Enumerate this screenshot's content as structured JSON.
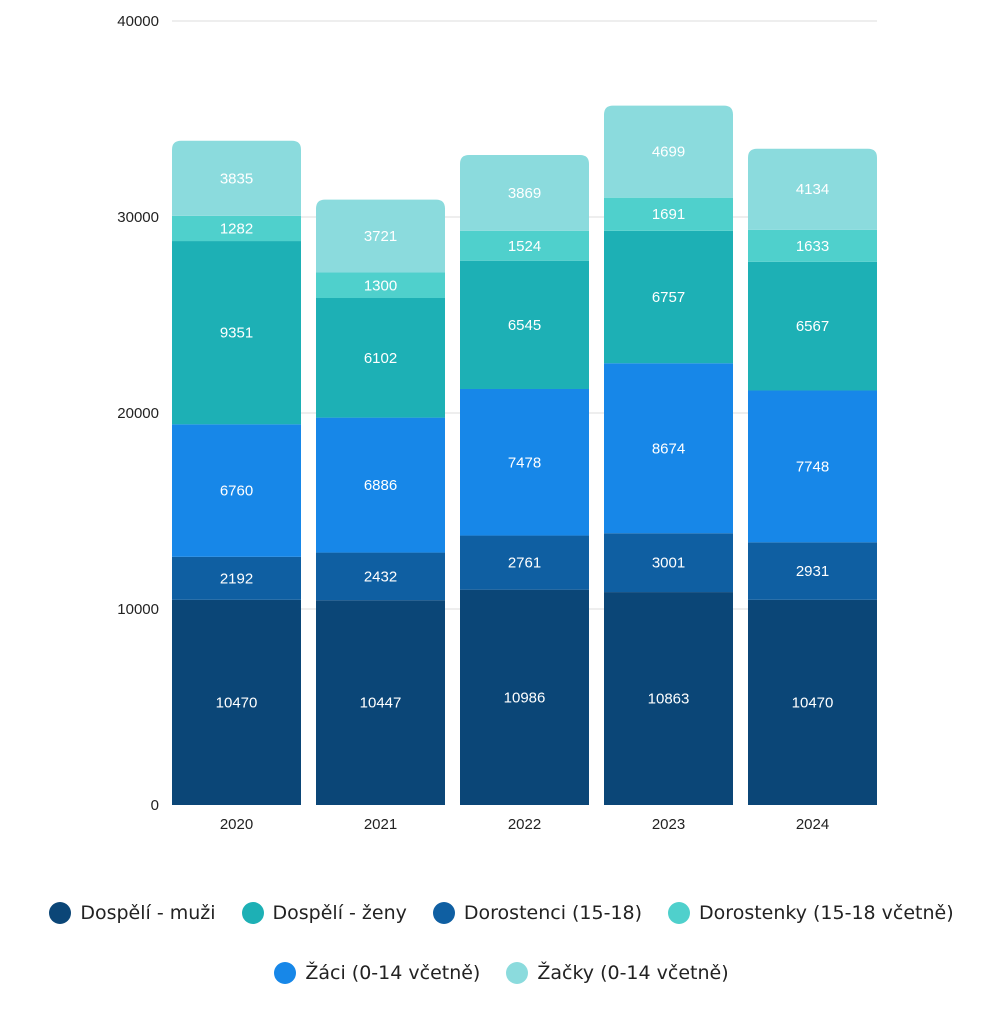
{
  "chart_data": {
    "type": "bar",
    "stacked": true,
    "categories": [
      "2020",
      "2021",
      "2022",
      "2023",
      "2024"
    ],
    "series": [
      {
        "name": "Dospělí - muži",
        "color": "#0b4677",
        "values": [
          10470,
          10447,
          10986,
          10863,
          10470
        ]
      },
      {
        "name": "Dorostenci (15-18)",
        "color": "#0f5fa2",
        "values": [
          2192,
          2432,
          2761,
          3001,
          2931
        ]
      },
      {
        "name": "Žáci (0-14 včetně)",
        "color": "#1787e8",
        "values": [
          6760,
          6886,
          7478,
          8674,
          7748
        ]
      },
      {
        "name": "Dospělí - ženy",
        "color": "#1db0b5",
        "values": [
          9351,
          6102,
          6545,
          6757,
          6567
        ]
      },
      {
        "name": "Dorostenky (15-18 včetně)",
        "color": "#4fd0cc",
        "values": [
          1282,
          1300,
          1524,
          1691,
          1633
        ]
      },
      {
        "name": "Žačky (0-14 včetně)",
        "color": "#8bdbdd",
        "values": [
          3835,
          3721,
          3869,
          4699,
          4134
        ]
      }
    ],
    "yticks": [
      0,
      10000,
      20000,
      30000,
      40000
    ],
    "ylim": [
      0,
      40000
    ],
    "grid": true,
    "legend_position": "bottom",
    "title": "",
    "xlabel": "",
    "ylabel": ""
  },
  "legend": {
    "rows": [
      [
        {
          "label": "Dospělí - muži",
          "color": "#0b4677"
        },
        {
          "label": "Dospělí - ženy",
          "color": "#1db0b5"
        },
        {
          "label": "Dorostenci (15-18)",
          "color": "#0f5fa2"
        },
        {
          "label": "Dorostenky (15-18 včetně)",
          "color": "#4fd0cc"
        }
      ],
      [
        {
          "label": "Žáci (0-14 včetně)",
          "color": "#1787e8"
        },
        {
          "label": "Žačky (0-14 včetně)",
          "color": "#8bdbdd"
        }
      ]
    ]
  }
}
